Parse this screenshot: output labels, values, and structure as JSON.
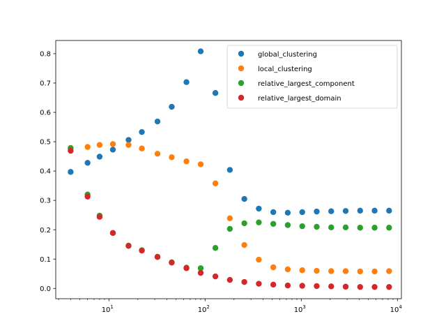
{
  "chart_data": {
    "type": "scatter",
    "xscale": "log",
    "xlim": [
      2.8,
      11000
    ],
    "ylim": [
      -0.035,
      0.845
    ],
    "x_tick_labels": [
      {
        "base": "10",
        "exp": "1",
        "value": 10
      },
      {
        "base": "10",
        "exp": "2",
        "value": 100
      },
      {
        "base": "10",
        "exp": "3",
        "value": 1000
      },
      {
        "base": "10",
        "exp": "4",
        "value": 10000
      }
    ],
    "y_ticks": [
      0.0,
      0.1,
      0.2,
      0.3,
      0.4,
      0.5,
      0.6,
      0.7,
      0.8
    ],
    "y_tick_labels": [
      "0.0",
      "0.1",
      "0.2",
      "0.3",
      "0.4",
      "0.5",
      "0.6",
      "0.7",
      "0.8"
    ],
    "legend_position": "top-right",
    "x": [
      4,
      6,
      8,
      11,
      16,
      22,
      32,
      45,
      64,
      90,
      128,
      181,
      256,
      362,
      512,
      724,
      1024,
      1448,
      2048,
      2896,
      4096,
      5793,
      8192
    ],
    "series": [
      {
        "name": "global_clustering",
        "color": "#1f77b4",
        "values": [
          0.397,
          0.428,
          0.449,
          0.473,
          0.506,
          0.533,
          0.569,
          0.619,
          0.703,
          0.808,
          0.666,
          0.404,
          0.305,
          0.272,
          0.26,
          0.258,
          0.26,
          0.262,
          0.263,
          0.264,
          0.265,
          0.265,
          0.265
        ]
      },
      {
        "name": "local_clustering",
        "color": "#ff7f0e",
        "values": [
          0.479,
          0.482,
          0.489,
          0.492,
          0.489,
          0.477,
          0.459,
          0.447,
          0.433,
          0.423,
          0.358,
          0.239,
          0.148,
          0.098,
          0.072,
          0.065,
          0.062,
          0.06,
          0.059,
          0.059,
          0.058,
          0.058,
          0.059
        ]
      },
      {
        "name": "relative_largest_component",
        "color": "#2ca02c",
        "values": [
          0.478,
          0.32,
          0.248,
          0.189,
          0.146,
          0.13,
          0.108,
          0.089,
          0.071,
          0.069,
          0.138,
          0.203,
          0.222,
          0.225,
          0.22,
          0.216,
          0.212,
          0.21,
          0.208,
          0.208,
          0.207,
          0.207,
          0.207
        ]
      },
      {
        "name": "relative_largest_domain",
        "color": "#d62728",
        "values": [
          0.469,
          0.313,
          0.244,
          0.189,
          0.145,
          0.129,
          0.107,
          0.088,
          0.069,
          0.053,
          0.041,
          0.029,
          0.022,
          0.016,
          0.013,
          0.01,
          0.009,
          0.008,
          0.007,
          0.006,
          0.005,
          0.005,
          0.005
        ]
      }
    ]
  }
}
